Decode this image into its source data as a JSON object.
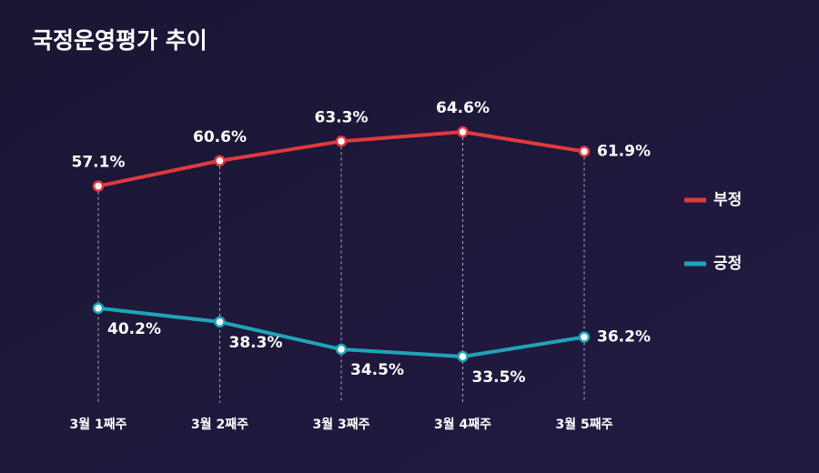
{
  "chart_data": {
    "type": "line",
    "title": "국정운영평가 추이",
    "categories": [
      "3월 1째주",
      "3월 2째주",
      "3월 3째주",
      "3월 4째주",
      "3월 5째주"
    ],
    "series": [
      {
        "name": "부정",
        "color": "#e03a3e",
        "values": [
          57.1,
          60.6,
          63.3,
          64.6,
          61.9
        ],
        "value_labels": [
          "57.1%",
          "60.6%",
          "63.3%",
          "64.6%",
          "61.9%"
        ]
      },
      {
        "name": "긍정",
        "color": "#1fa3b8",
        "values": [
          40.2,
          38.3,
          34.5,
          33.5,
          36.2
        ],
        "value_labels": [
          "40.2%",
          "38.3%",
          "34.5%",
          "33.5%",
          "36.2%"
        ]
      }
    ]
  }
}
